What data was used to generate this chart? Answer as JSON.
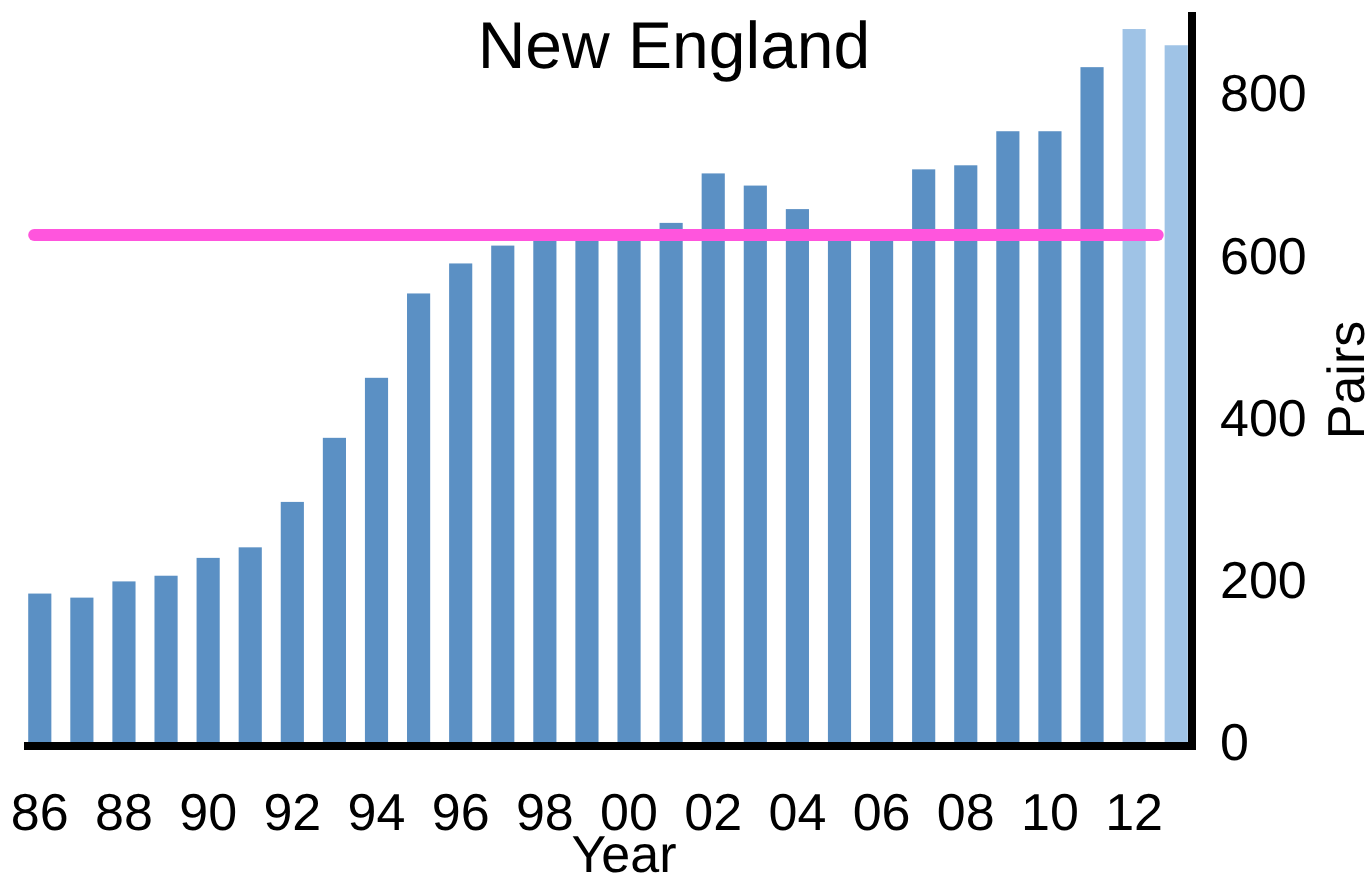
{
  "chart_data": {
    "type": "bar",
    "title": "New England",
    "xlabel": "Year",
    "ylabel": "Pairs",
    "categories": [
      "86",
      null,
      "88",
      null,
      "90",
      null,
      "92",
      null,
      "94",
      null,
      "96",
      null,
      "98",
      null,
      "00",
      null,
      "02",
      null,
      "04",
      null,
      "06",
      null,
      "08",
      null,
      "10",
      null,
      "12",
      null
    ],
    "values": [
      183,
      178,
      198,
      205,
      227,
      240,
      296,
      375,
      449,
      553,
      590,
      612,
      620,
      620,
      625,
      640,
      701,
      686,
      657,
      625,
      625,
      706,
      711,
      753,
      753,
      832,
      879,
      859
    ],
    "colors": [
      "#5b90c4",
      "#5b90c4",
      "#5b90c4",
      "#5b90c4",
      "#5b90c4",
      "#5b90c4",
      "#5b90c4",
      "#5b90c4",
      "#5b90c4",
      "#5b90c4",
      "#5b90c4",
      "#5b90c4",
      "#5b90c4",
      "#5b90c4",
      "#5b90c4",
      "#5b90c4",
      "#5b90c4",
      "#5b90c4",
      "#5b90c4",
      "#5b90c4",
      "#5b90c4",
      "#5b90c4",
      "#5b90c4",
      "#5b90c4",
      "#5b90c4",
      "#5b90c4",
      "#9fc3e6",
      "#9fc3e6"
    ],
    "ylim": [
      0,
      900
    ],
    "yticks": [
      0,
      200,
      400,
      600,
      800
    ],
    "grid": false,
    "ref_lines": [
      {
        "axis": "y",
        "value": 625,
        "color": "#ff55dd"
      }
    ]
  }
}
